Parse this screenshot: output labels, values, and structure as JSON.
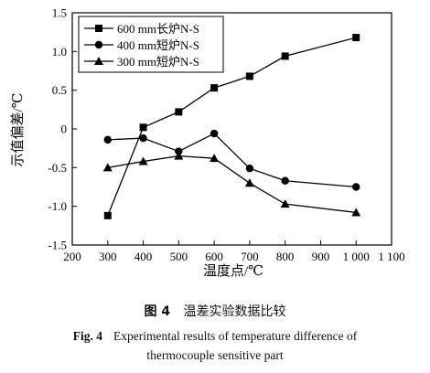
{
  "chart_data": {
    "type": "line",
    "xlabel": "温度点/℃",
    "ylabel": "示值偏差/℃",
    "xlim": [
      200,
      1100
    ],
    "ylim": [
      -1.5,
      1.5
    ],
    "x_ticks": [
      "200",
      "300",
      "400",
      "500",
      "600",
      "700",
      "800",
      "900",
      "1 000",
      "1 100"
    ],
    "x_tick_values": [
      200,
      300,
      400,
      500,
      600,
      700,
      800,
      900,
      1000,
      1100
    ],
    "y_ticks": [
      "-1.5",
      "-1.0",
      "-0.5",
      "0",
      "0.5",
      "1.0",
      "1.5"
    ],
    "y_tick_values": [
      -1.5,
      -1.0,
      -0.5,
      0,
      0.5,
      1.0,
      1.5
    ],
    "x": [
      300,
      400,
      500,
      600,
      700,
      800,
      1000
    ],
    "grid": false,
    "legend_position": "top-left",
    "series": [
      {
        "name": "600 mm长炉N-S",
        "marker": "square",
        "values": [
          -1.12,
          0.02,
          0.22,
          0.53,
          0.68,
          0.94,
          1.18
        ]
      },
      {
        "name": "400 mm短炉N-S",
        "marker": "circle",
        "values": [
          -0.14,
          -0.12,
          -0.29,
          -0.06,
          -0.51,
          -0.67,
          -0.75
        ]
      },
      {
        "name": "300 mm短炉N-S",
        "marker": "triangle",
        "values": [
          -0.5,
          -0.42,
          -0.35,
          -0.38,
          -0.7,
          -0.97,
          -1.08
        ]
      }
    ]
  },
  "caption": {
    "cn_label": "图 4",
    "cn_text": "温差实验数据比较",
    "en_label": "Fig. 4",
    "en_line1": "Experimental results of temperature difference of",
    "en_line2": "thermocouple sensitive part"
  }
}
